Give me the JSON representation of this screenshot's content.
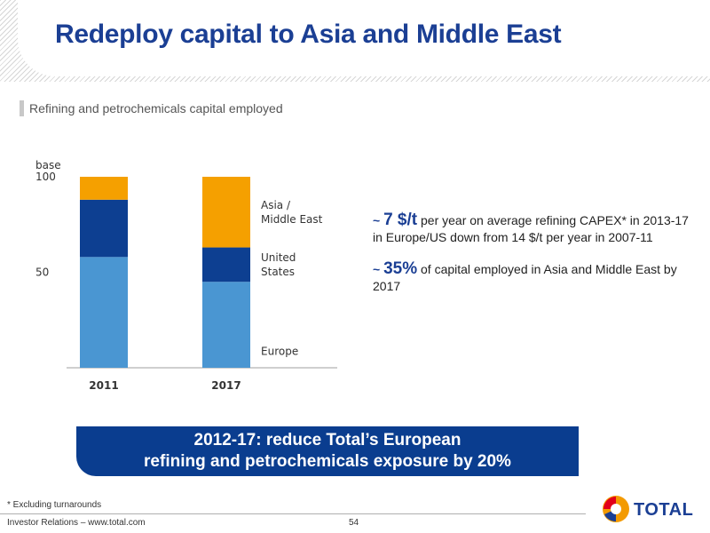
{
  "slide": {
    "title": "Redeploy capital to Asia and Middle East",
    "subtitle": "Refining and petrochemicals capital employed",
    "bullet1": {
      "tilde": "~ ",
      "highlight": "7 $/t",
      "text": " per year on average refining CAPEX* in 2013-17 in Europe/US down from 14 $/t per year in 2007-11"
    },
    "bullet2": {
      "tilde": "~ ",
      "highlight": "35%",
      "text": " of capital employed in Asia and Middle East by 2017"
    },
    "banner_line1": "2012-17: reduce Total’s European",
    "banner_line2": "refining and petrochemicals exposure by 20%",
    "footnote": "* Excluding turnarounds",
    "footer_left": "Investor Relations – www.total.com",
    "page_number": "54",
    "logo_text": "TOTAL"
  },
  "colors": {
    "title": "#1b3f94",
    "banner": "#0a3d8f",
    "europe": "#4a96d2",
    "united_states": "#0d3f91",
    "asia_middle_east": "#f5a000"
  },
  "chart_data": {
    "type": "bar",
    "stacked": true,
    "categories": [
      "2011",
      "2017"
    ],
    "series": [
      {
        "name": "Europe",
        "values": [
          58,
          45
        ],
        "color": "#4a96d2"
      },
      {
        "name": "United States",
        "values": [
          30,
          18
        ],
        "color": "#0d3f91"
      },
      {
        "name": "Asia / Middle East",
        "values": [
          12,
          37
        ],
        "color": "#f5a000"
      }
    ],
    "legend_labels": [
      {
        "series": "Asia / Middle East",
        "lines": [
          "Asia /",
          "Middle East"
        ]
      },
      {
        "series": "United States",
        "lines": [
          "United",
          "States"
        ]
      },
      {
        "series": "Europe",
        "lines": [
          "Europe"
        ]
      }
    ],
    "y_ticks": [
      {
        "value": 100,
        "label": "100"
      },
      {
        "value": 50,
        "label": "50"
      }
    ],
    "y_unit_label": "base",
    "ylim": [
      0,
      100
    ],
    "legend_position": "right"
  }
}
